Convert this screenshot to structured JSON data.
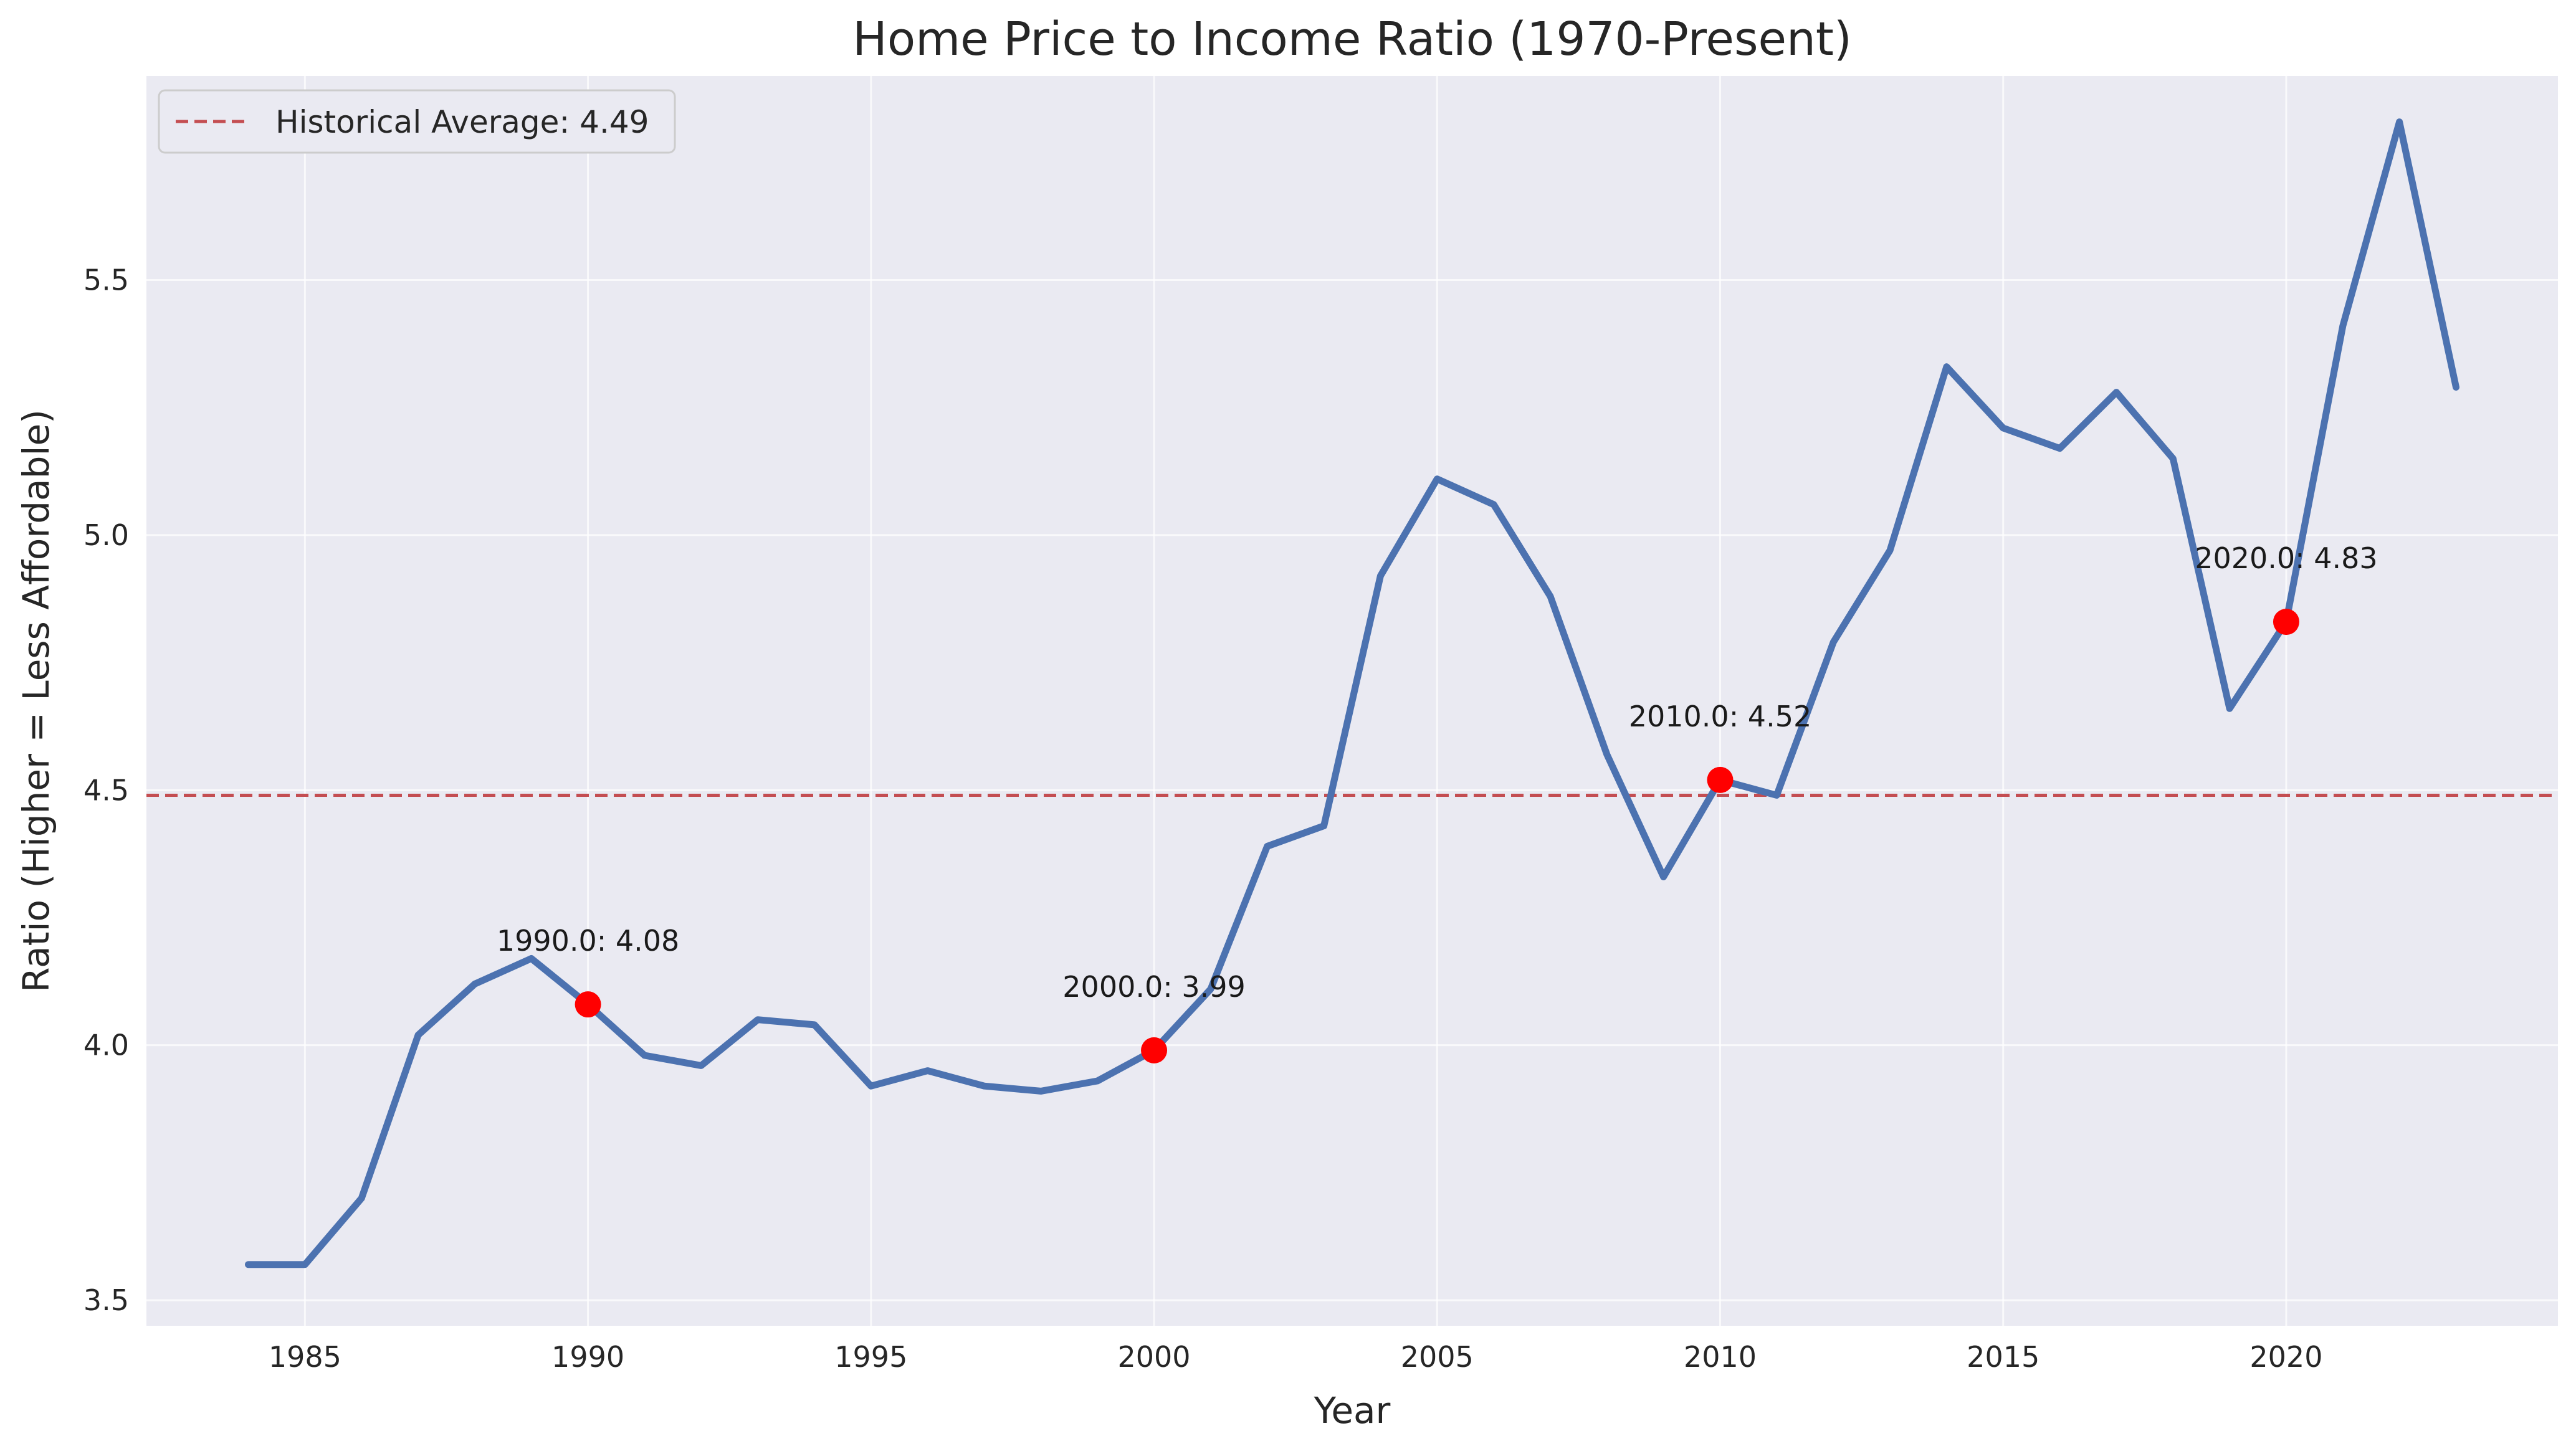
{
  "chart_data": {
    "type": "line",
    "title": "Home Price to Income Ratio (1970-Present)",
    "xlabel": "Year",
    "ylabel": "Ratio (Higher = Less Affordable)",
    "xlim": [
      1982.2,
      2024.8
    ],
    "ylim": [
      3.45,
      5.9
    ],
    "xticks": [
      1985,
      1990,
      1995,
      2000,
      2005,
      2010,
      2015,
      2020
    ],
    "yticks": [
      3.5,
      4.0,
      4.5,
      5.0,
      5.5
    ],
    "grid": true,
    "legend_position": "upper-left",
    "colors": {
      "background": "#eaeaf2",
      "grid": "#ffffff",
      "line": "#4c72b0",
      "average": "#c44e52",
      "marker": "#ff0000"
    },
    "series": [
      {
        "x": [
          1984,
          1985,
          1986,
          1987,
          1988,
          1989,
          1990,
          1991,
          1992,
          1993,
          1994,
          1995,
          1996,
          1997,
          1998,
          1999,
          2000,
          2001,
          2002,
          2003,
          2004,
          2005,
          2006,
          2007,
          2008,
          2009,
          2010,
          2011,
          2012,
          2013,
          2014,
          2015,
          2016,
          2017,
          2018,
          2019,
          2020,
          2021,
          2022,
          2023
        ],
        "values": [
          3.57,
          3.57,
          3.7,
          4.02,
          4.12,
          4.17,
          4.08,
          3.98,
          3.96,
          4.05,
          4.04,
          3.92,
          3.95,
          3.92,
          3.91,
          3.93,
          3.99,
          4.11,
          4.39,
          4.43,
          4.92,
          5.11,
          5.06,
          4.88,
          4.57,
          4.33,
          4.52,
          4.49,
          4.79,
          4.97,
          5.33,
          5.21,
          5.17,
          5.28,
          5.15,
          4.66,
          4.83,
          5.41,
          5.81,
          5.29
        ]
      }
    ],
    "reference_line": {
      "y": 4.49,
      "label": "Historical Average: 4.49"
    },
    "annotations": [
      {
        "x": 1990,
        "y": 4.08,
        "text": "1990.0: 4.08"
      },
      {
        "x": 2000,
        "y": 3.99,
        "text": "2000.0: 3.99"
      },
      {
        "x": 2010,
        "y": 4.52,
        "text": "2010.0: 4.52"
      },
      {
        "x": 2020,
        "y": 4.83,
        "text": "2020.0: 4.83"
      }
    ]
  }
}
